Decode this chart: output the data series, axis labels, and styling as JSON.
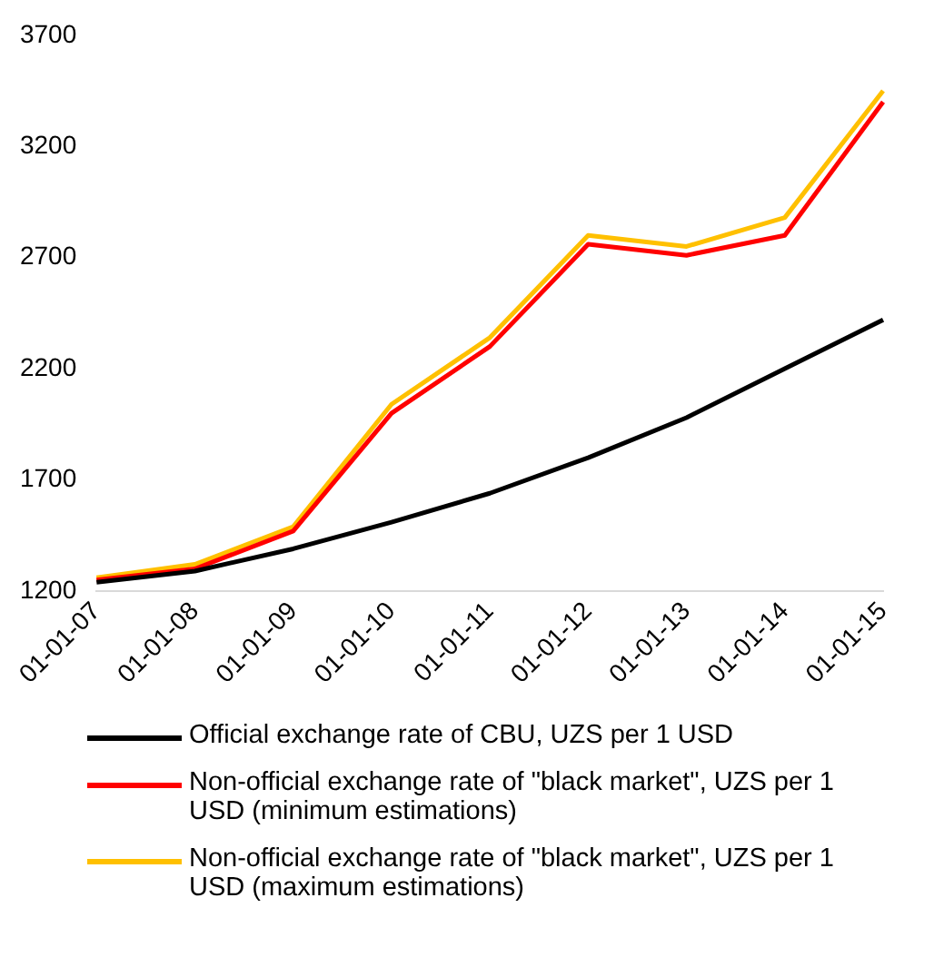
{
  "chart_data": {
    "type": "line",
    "categories": [
      "01-01-07",
      "01-01-08",
      "01-01-09",
      "01-01-10",
      "01-01-11",
      "01-01-12",
      "01-01-13",
      "01-01-14",
      "01-01-15"
    ],
    "series": [
      {
        "name": "Official exchange rate of CBU, UZS per 1 USD",
        "color": "#000000",
        "values": [
          1240,
          1290,
          1390,
          1510,
          1640,
          1800,
          1980,
          2200,
          2420
        ]
      },
      {
        "name": "Non-official exchange rate of \"black market\", UZS per 1 USD (minimum estimations)",
        "color": "#ff0000",
        "values": [
          1250,
          1300,
          1470,
          2000,
          2300,
          2760,
          2710,
          2800,
          3400
        ]
      },
      {
        "name": "Non-official exchange rate of \"black market\", UZS per 1 USD (maximum estimations)",
        "color": "#ffc000",
        "values": [
          1260,
          1320,
          1490,
          2040,
          2340,
          2800,
          2750,
          2880,
          3450
        ]
      }
    ],
    "ylim": [
      1200,
      3700
    ],
    "yticks": [
      1200,
      1700,
      2200,
      2700,
      3200,
      3700
    ],
    "grid": false,
    "legend": "bottom",
    "marker": "none",
    "line_style": "solid"
  }
}
